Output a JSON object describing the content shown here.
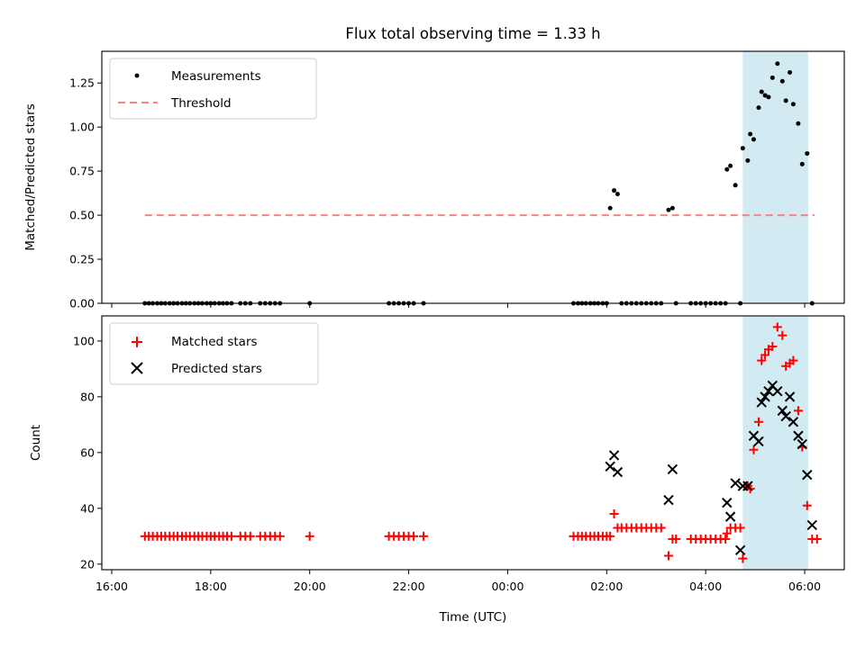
{
  "chart_data": [
    {
      "type": "scatter",
      "title": "Flux total observing time = 1.33 h",
      "xlabel": "",
      "ylabel": "Matched/Predicted stars",
      "ylim": [
        0,
        1.43
      ],
      "yticks": [
        "0.00",
        "0.25",
        "0.50",
        "0.75",
        "1.00",
        "1.25"
      ],
      "ytick_values": [
        0,
        0.25,
        0.5,
        0.75,
        1.0,
        1.25
      ],
      "xlim_hours": [
        15.8,
        30.8
      ],
      "highlight_span_hours": [
        28.75,
        30.07
      ],
      "highlight_color": "#add8e6",
      "legend": {
        "placement": "top-left",
        "entries": [
          "Measurements",
          "Threshold"
        ]
      },
      "series": [
        {
          "name": "Measurements",
          "color": "#000000",
          "marker": "dot",
          "points": [
            [
              16.67,
              0
            ],
            [
              16.75,
              0
            ],
            [
              16.83,
              0
            ],
            [
              16.92,
              0
            ],
            [
              17.0,
              0
            ],
            [
              17.08,
              0
            ],
            [
              17.17,
              0
            ],
            [
              17.25,
              0
            ],
            [
              17.33,
              0
            ],
            [
              17.42,
              0
            ],
            [
              17.5,
              0
            ],
            [
              17.58,
              0
            ],
            [
              17.67,
              0
            ],
            [
              17.75,
              0
            ],
            [
              17.83,
              0
            ],
            [
              17.92,
              0
            ],
            [
              18.0,
              0
            ],
            [
              18.08,
              0
            ],
            [
              18.17,
              0
            ],
            [
              18.25,
              0
            ],
            [
              18.33,
              0
            ],
            [
              18.42,
              0
            ],
            [
              18.6,
              0
            ],
            [
              18.7,
              0
            ],
            [
              18.8,
              0
            ],
            [
              19.0,
              0
            ],
            [
              19.1,
              0
            ],
            [
              19.2,
              0
            ],
            [
              19.3,
              0
            ],
            [
              19.4,
              0
            ],
            [
              20.0,
              0
            ],
            [
              21.6,
              0
            ],
            [
              21.7,
              0
            ],
            [
              21.8,
              0
            ],
            [
              21.9,
              0
            ],
            [
              22.0,
              0
            ],
            [
              22.1,
              0
            ],
            [
              22.3,
              0
            ],
            [
              25.33,
              0
            ],
            [
              25.42,
              0
            ],
            [
              25.5,
              0
            ],
            [
              25.58,
              0
            ],
            [
              25.67,
              0
            ],
            [
              25.75,
              0
            ],
            [
              25.83,
              0
            ],
            [
              25.92,
              0
            ],
            [
              26.0,
              0
            ],
            [
              26.07,
              0.54
            ],
            [
              26.15,
              0.64
            ],
            [
              26.22,
              0.62
            ],
            [
              26.3,
              0
            ],
            [
              26.4,
              0
            ],
            [
              26.5,
              0
            ],
            [
              26.6,
              0
            ],
            [
              26.7,
              0
            ],
            [
              26.8,
              0
            ],
            [
              26.9,
              0
            ],
            [
              27.0,
              0
            ],
            [
              27.1,
              0
            ],
            [
              27.25,
              0.53
            ],
            [
              27.33,
              0.54
            ],
            [
              27.4,
              0
            ],
            [
              27.7,
              0
            ],
            [
              27.8,
              0
            ],
            [
              27.9,
              0
            ],
            [
              28.0,
              0
            ],
            [
              28.1,
              0
            ],
            [
              28.2,
              0
            ],
            [
              28.3,
              0
            ],
            [
              28.4,
              0
            ],
            [
              28.43,
              0.76
            ],
            [
              28.5,
              0.78
            ],
            [
              28.6,
              0.67
            ],
            [
              28.7,
              0
            ],
            [
              28.75,
              0.88
            ],
            [
              28.85,
              0.81
            ],
            [
              28.9,
              0.96
            ],
            [
              28.97,
              0.93
            ],
            [
              29.07,
              1.11
            ],
            [
              29.13,
              1.2
            ],
            [
              29.2,
              1.18
            ],
            [
              29.27,
              1.17
            ],
            [
              29.35,
              1.28
            ],
            [
              29.45,
              1.36
            ],
            [
              29.55,
              1.26
            ],
            [
              29.62,
              1.15
            ],
            [
              29.7,
              1.31
            ],
            [
              29.77,
              1.13
            ],
            [
              29.87,
              1.02
            ],
            [
              29.95,
              0.79
            ],
            [
              30.05,
              0.85
            ],
            [
              30.15,
              0
            ]
          ]
        },
        {
          "name": "Threshold",
          "color": "#ff7f7f",
          "style": "dashed",
          "x_range_hours": [
            16.67,
            30.2
          ],
          "value": 0.5
        }
      ]
    },
    {
      "type": "scatter",
      "xlabel": "Time (UTC)",
      "ylabel": "Count",
      "ylim": [
        18,
        109
      ],
      "yticks": [
        "20",
        "40",
        "60",
        "80",
        "100"
      ],
      "ytick_values": [
        20,
        40,
        60,
        80,
        100
      ],
      "xlim_hours": [
        15.8,
        30.8
      ],
      "xticks": [
        "16:00",
        "18:00",
        "20:00",
        "22:00",
        "00:00",
        "02:00",
        "04:00",
        "06:00"
      ],
      "xtick_hours": [
        16,
        18,
        20,
        22,
        24,
        26,
        28,
        30
      ],
      "highlight_span_hours": [
        28.75,
        30.07
      ],
      "highlight_color": "#add8e6",
      "legend": {
        "placement": "top-left",
        "entries": [
          "Matched stars",
          "Predicted stars"
        ]
      },
      "series": [
        {
          "name": "Matched stars",
          "color": "#ff0000",
          "marker": "plus",
          "points": [
            [
              16.67,
              30
            ],
            [
              16.75,
              30
            ],
            [
              16.83,
              30
            ],
            [
              16.92,
              30
            ],
            [
              17.0,
              30
            ],
            [
              17.08,
              30
            ],
            [
              17.17,
              30
            ],
            [
              17.25,
              30
            ],
            [
              17.33,
              30
            ],
            [
              17.42,
              30
            ],
            [
              17.5,
              30
            ],
            [
              17.58,
              30
            ],
            [
              17.67,
              30
            ],
            [
              17.75,
              30
            ],
            [
              17.83,
              30
            ],
            [
              17.92,
              30
            ],
            [
              18.0,
              30
            ],
            [
              18.08,
              30
            ],
            [
              18.17,
              30
            ],
            [
              18.25,
              30
            ],
            [
              18.33,
              30
            ],
            [
              18.42,
              30
            ],
            [
              18.6,
              30
            ],
            [
              18.7,
              30
            ],
            [
              18.8,
              30
            ],
            [
              19.0,
              30
            ],
            [
              19.1,
              30
            ],
            [
              19.2,
              30
            ],
            [
              19.3,
              30
            ],
            [
              19.4,
              30
            ],
            [
              20.0,
              30
            ],
            [
              21.6,
              30
            ],
            [
              21.7,
              30
            ],
            [
              21.8,
              30
            ],
            [
              21.9,
              30
            ],
            [
              22.0,
              30
            ],
            [
              22.1,
              30
            ],
            [
              22.3,
              30
            ],
            [
              25.33,
              30
            ],
            [
              25.42,
              30
            ],
            [
              25.5,
              30
            ],
            [
              25.58,
              30
            ],
            [
              25.67,
              30
            ],
            [
              25.75,
              30
            ],
            [
              25.83,
              30
            ],
            [
              25.92,
              30
            ],
            [
              26.0,
              30
            ],
            [
              26.07,
              30
            ],
            [
              26.15,
              38
            ],
            [
              26.22,
              33
            ],
            [
              26.3,
              33
            ],
            [
              26.4,
              33
            ],
            [
              26.5,
              33
            ],
            [
              26.6,
              33
            ],
            [
              26.7,
              33
            ],
            [
              26.8,
              33
            ],
            [
              26.9,
              33
            ],
            [
              27.0,
              33
            ],
            [
              27.1,
              33
            ],
            [
              27.25,
              23
            ],
            [
              27.33,
              29
            ],
            [
              27.4,
              29
            ],
            [
              27.7,
              29
            ],
            [
              27.8,
              29
            ],
            [
              27.9,
              29
            ],
            [
              28.0,
              29
            ],
            [
              28.1,
              29
            ],
            [
              28.2,
              29
            ],
            [
              28.3,
              29
            ],
            [
              28.4,
              29
            ],
            [
              28.43,
              31
            ],
            [
              28.5,
              33
            ],
            [
              28.6,
              33
            ],
            [
              28.7,
              33
            ],
            [
              28.75,
              22
            ],
            [
              28.85,
              48
            ],
            [
              28.9,
              47
            ],
            [
              28.97,
              61
            ],
            [
              29.07,
              71
            ],
            [
              29.13,
              93
            ],
            [
              29.2,
              95
            ],
            [
              29.27,
              97
            ],
            [
              29.35,
              98
            ],
            [
              29.45,
              105
            ],
            [
              29.55,
              102
            ],
            [
              29.62,
              91
            ],
            [
              29.7,
              92
            ],
            [
              29.77,
              93
            ],
            [
              29.87,
              75
            ],
            [
              29.95,
              62
            ],
            [
              30.05,
              41
            ],
            [
              30.15,
              29
            ],
            [
              30.25,
              29
            ]
          ]
        },
        {
          "name": "Predicted stars",
          "color": "#000000",
          "marker": "x",
          "points": [
            [
              26.07,
              55
            ],
            [
              26.15,
              59
            ],
            [
              26.22,
              53
            ],
            [
              27.25,
              43
            ],
            [
              27.33,
              54
            ],
            [
              28.43,
              42
            ],
            [
              28.5,
              37
            ],
            [
              28.6,
              49
            ],
            [
              28.7,
              25
            ],
            [
              28.75,
              48
            ],
            [
              28.85,
              48
            ],
            [
              28.97,
              66
            ],
            [
              29.07,
              64
            ],
            [
              29.13,
              78
            ],
            [
              29.2,
              80
            ],
            [
              29.27,
              82
            ],
            [
              29.35,
              84
            ],
            [
              29.45,
              82
            ],
            [
              29.55,
              75
            ],
            [
              29.62,
              73
            ],
            [
              29.7,
              80
            ],
            [
              29.77,
              71
            ],
            [
              29.87,
              66
            ],
            [
              29.95,
              63
            ],
            [
              30.05,
              52
            ],
            [
              30.15,
              34
            ]
          ]
        }
      ]
    }
  ]
}
